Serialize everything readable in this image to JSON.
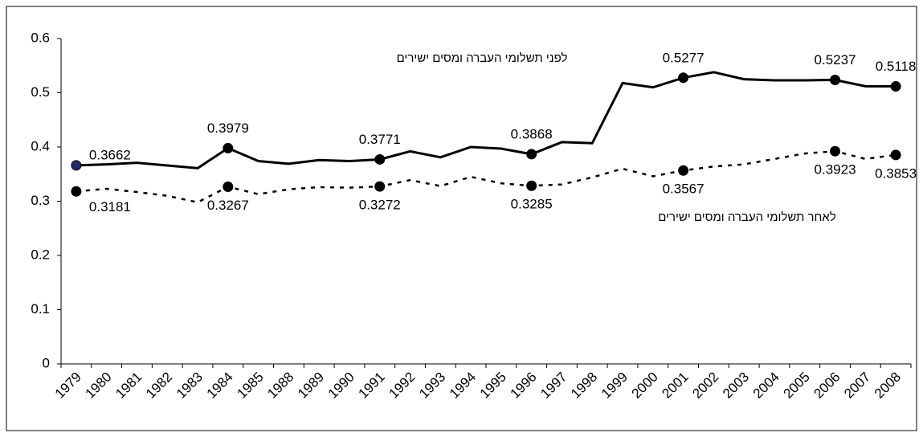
{
  "chart_data": {
    "type": "line",
    "categories": [
      "1979",
      "1980",
      "1981",
      "1982",
      "1983",
      "1984",
      "1985",
      "1988",
      "1989",
      "1990",
      "1991",
      "1992",
      "1993",
      "1994",
      "1995",
      "1996",
      "1997",
      "1998",
      "1999",
      "2000",
      "2001",
      "2002",
      "2003",
      "2004",
      "2005",
      "2006",
      "2007",
      "2008"
    ],
    "series": [
      {
        "name": "לפני תשלומי העברה ומסים ישירים",
        "color": "#000000",
        "style": "solid",
        "values": [
          0.3662,
          0.368,
          0.371,
          0.366,
          0.361,
          0.3979,
          0.374,
          0.369,
          0.376,
          0.374,
          0.3771,
          0.392,
          0.381,
          0.4,
          0.397,
          0.3868,
          0.409,
          0.407,
          0.518,
          0.51,
          0.5277,
          0.538,
          0.525,
          0.523,
          0.523,
          0.5237,
          0.512,
          0.5118
        ],
        "value_labels": [
          "0.3662",
          null,
          null,
          null,
          null,
          "0.3979",
          null,
          null,
          null,
          null,
          "0.3771",
          null,
          null,
          null,
          null,
          "0.3868",
          null,
          null,
          null,
          null,
          "0.5277",
          null,
          null,
          null,
          null,
          "0.5237",
          null,
          "0.5118"
        ]
      },
      {
        "name": "לאחר תשלומי העברה ומסים ישירים",
        "color": "#000000",
        "style": "dashed",
        "values": [
          0.3181,
          0.323,
          0.317,
          0.31,
          0.298,
          0.3267,
          0.313,
          0.322,
          0.326,
          0.325,
          0.3272,
          0.339,
          0.328,
          0.345,
          0.333,
          0.3285,
          0.331,
          0.344,
          0.36,
          0.346,
          0.3567,
          0.364,
          0.368,
          0.378,
          0.388,
          0.3923,
          0.378,
          0.3853
        ],
        "value_labels": [
          "0.3181",
          null,
          null,
          null,
          null,
          "0.3267",
          null,
          null,
          null,
          null,
          "0.3272",
          null,
          null,
          null,
          null,
          "0.3285",
          null,
          null,
          null,
          null,
          "0.3567",
          null,
          null,
          null,
          null,
          "0.3923",
          null,
          "0.3853"
        ]
      }
    ],
    "ylim": [
      0,
      0.6
    ],
    "yticks": [
      0,
      0.1,
      0.2,
      0.3,
      0.4,
      0.5,
      0.6
    ],
    "grid": false
  }
}
